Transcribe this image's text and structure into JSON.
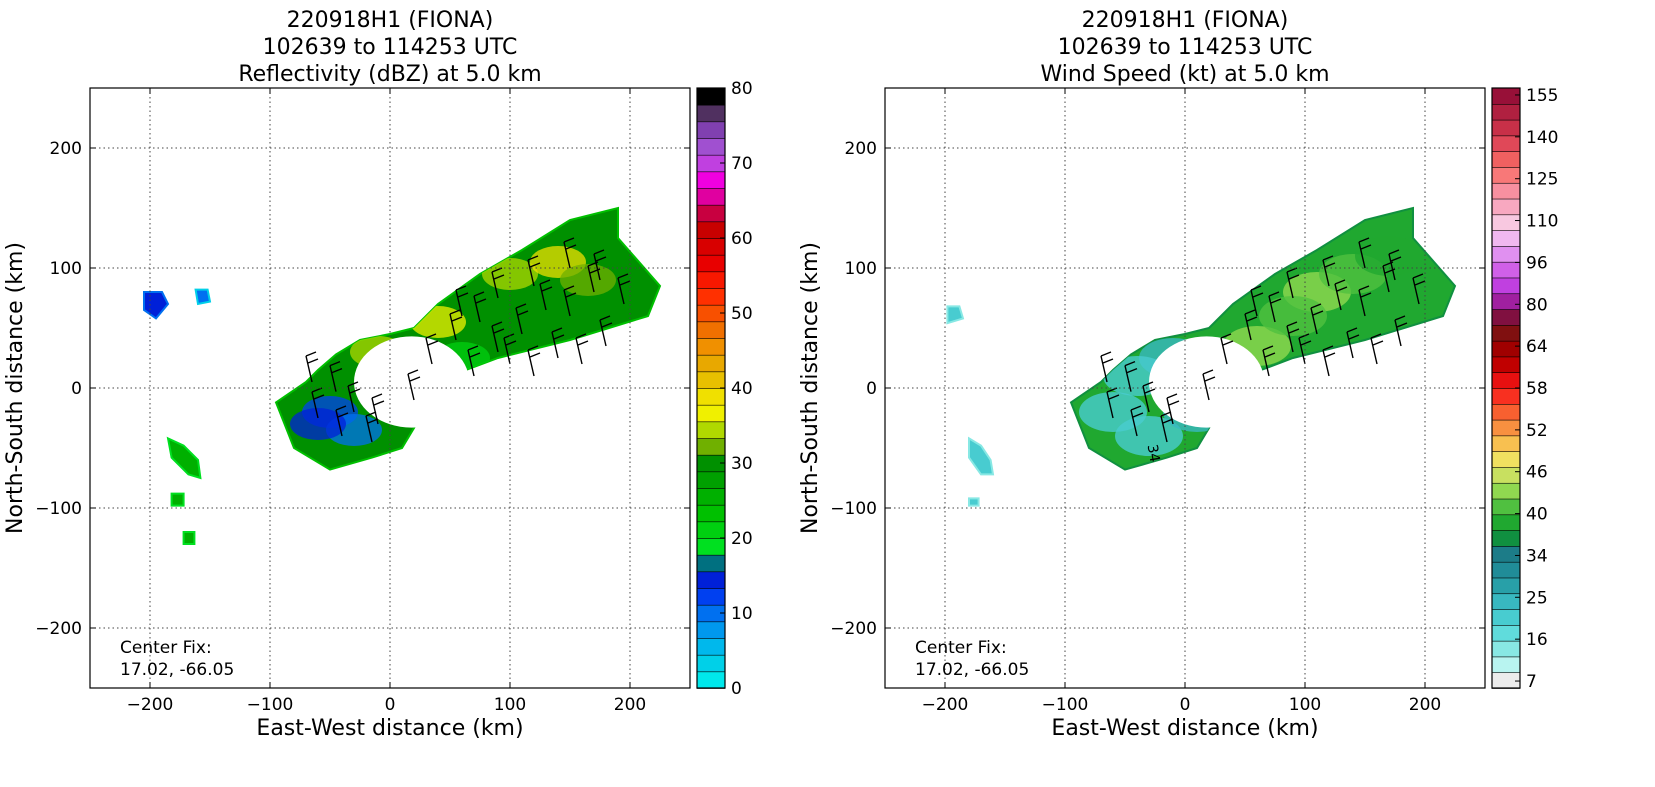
{
  "chart_data": [
    {
      "type": "heatmap",
      "title": [
        "220918H1 (FIONA)",
        "102639 to 114253 UTC",
        "Reflectivity (dBZ) at 5.0 km"
      ],
      "xlabel": "East-West distance (km)",
      "ylabel": "North-South distance (km)",
      "xlim": [
        -250,
        250
      ],
      "ylim": [
        -250,
        250
      ],
      "xticks": [
        -200,
        -100,
        0,
        100,
        200
      ],
      "yticks": [
        -200,
        -100,
        0,
        100,
        200
      ],
      "xtick_labels": [
        "−200",
        "−100",
        "0",
        "100",
        "200"
      ],
      "ytick_labels": [
        "−200",
        "−100",
        "0",
        "100",
        "200"
      ],
      "grid": true,
      "annotation": [
        "Center Fix:",
        "17.02, -66.05"
      ],
      "colorbar": {
        "min": 0,
        "max": 80,
        "step": 5,
        "ticks": [
          0,
          10,
          20,
          30,
          40,
          50,
          60,
          70,
          80
        ],
        "tick_labels": [
          "0",
          "10",
          "20",
          "30",
          "40",
          "50",
          "60",
          "70",
          "80"
        ],
        "colors": [
          "#00e8ec",
          "#00d0e8",
          "#00b8ec",
          "#0098ee",
          "#0070f0",
          "#0040f0",
          "#0020d8",
          "#007080",
          "#00e020",
          "#00d010",
          "#00c000",
          "#00b000",
          "#00a000",
          "#009000",
          "#70b000",
          "#b0d800",
          "#f0f000",
          "#f0e000",
          "#e8c000",
          "#e8a800",
          "#f09000",
          "#f07000",
          "#f85000",
          "#ff3000",
          "#f81800",
          "#e80000",
          "#d80000",
          "#c80000",
          "#c80040",
          "#e000a0",
          "#f000e0",
          "#c040e0",
          "#a050d0",
          "#8040b0",
          "#503060",
          "#000000"
        ]
      },
      "regions": [
        {
          "name": "main-band",
          "value": 30,
          "points": [
            [
              -95,
              -12
            ],
            [
              -70,
              5
            ],
            [
              -60,
              15
            ],
            [
              -45,
              28
            ],
            [
              -25,
              40
            ],
            [
              0,
              45
            ],
            [
              20,
              50
            ],
            [
              40,
              70
            ],
            [
              75,
              95
            ],
            [
              110,
              115
            ],
            [
              150,
              140
            ],
            [
              190,
              150
            ],
            [
              190,
              125
            ],
            [
              225,
              85
            ],
            [
              215,
              60
            ],
            [
              150,
              40
            ],
            [
              90,
              25
            ],
            [
              50,
              10
            ],
            [
              25,
              -25
            ],
            [
              10,
              -50
            ],
            [
              -15,
              -58
            ],
            [
              -50,
              -68
            ],
            [
              -80,
              -50
            ]
          ]
        },
        {
          "name": "west-cluster-1",
          "value": 15,
          "points": [
            [
              -205,
              80
            ],
            [
              -190,
              80
            ],
            [
              -185,
              70
            ],
            [
              -195,
              58
            ],
            [
              -205,
              65
            ]
          ]
        },
        {
          "name": "west-cluster-2",
          "value": 10,
          "points": [
            [
              -162,
              82
            ],
            [
              -152,
              82
            ],
            [
              -150,
              72
            ],
            [
              -160,
              70
            ]
          ]
        },
        {
          "name": "west-cluster-3",
          "value": 25,
          "points": [
            [
              -185,
              -42
            ],
            [
              -172,
              -48
            ],
            [
              -160,
              -60
            ],
            [
              -158,
              -75
            ],
            [
              -168,
              -72
            ],
            [
              -182,
              -58
            ]
          ]
        },
        {
          "name": "west-cluster-4",
          "value": 25,
          "points": [
            [
              -182,
              -88
            ],
            [
              -172,
              -88
            ],
            [
              -172,
              -98
            ],
            [
              -182,
              -98
            ]
          ]
        },
        {
          "name": "west-cluster-5",
          "value": 25,
          "points": [
            [
              -172,
              -120
            ],
            [
              -163,
              -120
            ],
            [
              -163,
              -130
            ],
            [
              -172,
              -130
            ]
          ]
        }
      ],
      "eye": {
        "center": [
          18,
          5
        ],
        "rx": 48,
        "ry": 38
      },
      "barbs": [
        [
          -65,
          5
        ],
        [
          -45,
          -3
        ],
        [
          -30,
          -20
        ],
        [
          -60,
          -25
        ],
        [
          -40,
          -40
        ],
        [
          -15,
          -45
        ],
        [
          -10,
          -30
        ],
        [
          20,
          -10
        ],
        [
          35,
          20
        ],
        [
          55,
          40
        ],
        [
          75,
          55
        ],
        [
          90,
          30
        ],
        [
          110,
          45
        ],
        [
          130,
          65
        ],
        [
          150,
          60
        ],
        [
          170,
          80
        ],
        [
          195,
          70
        ],
        [
          70,
          10
        ],
        [
          100,
          20
        ],
        [
          120,
          10
        ],
        [
          140,
          25
        ],
        [
          160,
          20
        ],
        [
          180,
          35
        ],
        [
          60,
          60
        ],
        [
          90,
          75
        ],
        [
          120,
          85
        ],
        [
          150,
          100
        ],
        [
          175,
          90
        ]
      ]
    },
    {
      "type": "heatmap",
      "title": [
        "220918H1 (FIONA)",
        "102639 to 114253 UTC",
        "Wind Speed (kt) at 5.0 km"
      ],
      "xlabel": "East-West distance (km)",
      "ylabel": "North-South distance (km)",
      "xlim": [
        -250,
        250
      ],
      "ylim": [
        -250,
        250
      ],
      "xticks": [
        -200,
        -100,
        0,
        100,
        200
      ],
      "yticks": [
        -200,
        -100,
        0,
        100,
        200
      ],
      "xtick_labels": [
        "−200",
        "−100",
        "0",
        "100",
        "200"
      ],
      "ytick_labels": [
        "−200",
        "−100",
        "0",
        "100",
        "200"
      ],
      "grid": true,
      "annotation": [
        "Center Fix:",
        "17.02, -66.05"
      ],
      "contour_label": "34",
      "colorbar": {
        "min": 7,
        "max": 160,
        "step": "irregular",
        "tick_labels": [
          "7",
          "16",
          "25",
          "34",
          "40",
          "46",
          "52",
          "58",
          "64",
          "80",
          "96",
          "110",
          "125",
          "140",
          "155"
        ],
        "tick_fraction": [
          0.0116,
          0.0814,
          0.1512,
          0.2209,
          0.2907,
          0.3605,
          0.4302,
          0.5,
          0.5698,
          0.6395,
          0.7093,
          0.7791,
          0.8488,
          0.9186,
          0.9884
        ],
        "colors": [
          "#ececec",
          "#b8f4f0",
          "#88e8e4",
          "#60dcdc",
          "#48ccd0",
          "#38b8c0",
          "#28a0a8",
          "#208c98",
          "#1c7c88",
          "#109040",
          "#20a830",
          "#50c040",
          "#90d850",
          "#c8e060",
          "#f0e060",
          "#f8c050",
          "#f89040",
          "#f86030",
          "#f83020",
          "#e81010",
          "#c00000",
          "#a00000",
          "#801010",
          "#801040",
          "#a020a0",
          "#c040e0",
          "#d060e8",
          "#e090f0",
          "#f0b8f0",
          "#f8c8e0",
          "#f8a8c0",
          "#f890a0",
          "#f87878",
          "#f06060",
          "#e04858",
          "#c83048",
          "#b02040",
          "#981038"
        ]
      },
      "regions": [
        {
          "name": "main-band",
          "value": 50,
          "points": [
            [
              -95,
              -12
            ],
            [
              -70,
              5
            ],
            [
              -60,
              15
            ],
            [
              -45,
              28
            ],
            [
              -25,
              40
            ],
            [
              0,
              45
            ],
            [
              20,
              50
            ],
            [
              40,
              70
            ],
            [
              75,
              95
            ],
            [
              110,
              115
            ],
            [
              150,
              140
            ],
            [
              190,
              150
            ],
            [
              190,
              125
            ],
            [
              225,
              85
            ],
            [
              215,
              60
            ],
            [
              150,
              40
            ],
            [
              90,
              25
            ],
            [
              50,
              10
            ],
            [
              25,
              -25
            ],
            [
              10,
              -50
            ],
            [
              -15,
              -58
            ],
            [
              -50,
              -68
            ],
            [
              -80,
              -50
            ]
          ]
        },
        {
          "name": "west-cluster-1",
          "value": 25,
          "points": [
            [
              -198,
              68
            ],
            [
              -188,
              68
            ],
            [
              -185,
              58
            ],
            [
              -198,
              54
            ]
          ]
        },
        {
          "name": "west-cluster-3",
          "value": 25,
          "points": [
            [
              -180,
              -42
            ],
            [
              -170,
              -48
            ],
            [
              -162,
              -60
            ],
            [
              -160,
              -72
            ],
            [
              -170,
              -72
            ],
            [
              -180,
              -58
            ]
          ]
        },
        {
          "name": "west-cluster-4",
          "value": 25,
          "points": [
            [
              -180,
              -92
            ],
            [
              -172,
              -92
            ],
            [
              -172,
              -98
            ],
            [
              -180,
              -98
            ]
          ]
        }
      ],
      "eye": {
        "center": [
          18,
          5
        ],
        "rx": 48,
        "ry": 38
      },
      "barbs": [
        [
          -65,
          5
        ],
        [
          -45,
          -3
        ],
        [
          -30,
          -20
        ],
        [
          -60,
          -25
        ],
        [
          -40,
          -40
        ],
        [
          -15,
          -45
        ],
        [
          -10,
          -30
        ],
        [
          20,
          -10
        ],
        [
          35,
          20
        ],
        [
          55,
          40
        ],
        [
          75,
          55
        ],
        [
          90,
          30
        ],
        [
          110,
          45
        ],
        [
          130,
          65
        ],
        [
          150,
          60
        ],
        [
          170,
          80
        ],
        [
          195,
          70
        ],
        [
          70,
          10
        ],
        [
          100,
          20
        ],
        [
          120,
          10
        ],
        [
          140,
          25
        ],
        [
          160,
          20
        ],
        [
          180,
          35
        ],
        [
          60,
          60
        ],
        [
          90,
          75
        ],
        [
          120,
          85
        ],
        [
          150,
          100
        ],
        [
          175,
          90
        ]
      ]
    }
  ]
}
